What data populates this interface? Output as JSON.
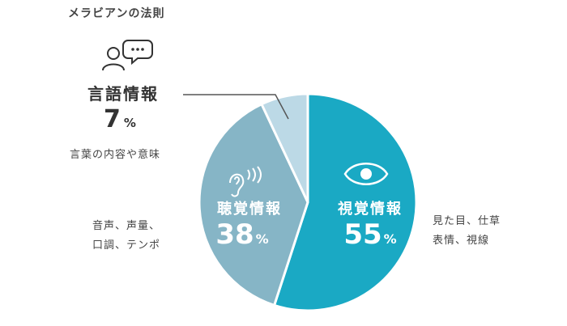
{
  "title": "メラビアンの法則",
  "chart_data": {
    "type": "pie",
    "title": "メラビアンの法則",
    "slices": [
      {
        "key": "visual",
        "label": "視覚情報",
        "value": 55,
        "unit": "%",
        "color": "#1aa9c4",
        "description": [
          "見た目、仕草",
          "表情、視線"
        ]
      },
      {
        "key": "vocal",
        "label": "聴覚情報",
        "value": 38,
        "unit": "%",
        "color": "#86b5c6",
        "description": [
          "音声、声量、",
          "口調、テンポ"
        ]
      },
      {
        "key": "verbal",
        "label": "言語情報",
        "value": 7,
        "unit": "%",
        "color": "#bcd9e6",
        "description": [
          "言葉の内容や意味"
        ]
      }
    ],
    "start": "top",
    "direction": "clockwise"
  },
  "icons": {
    "verbal": [
      "person-icon",
      "speech-bubble-icon"
    ],
    "vocal": "ear-icon",
    "visual": "eye-icon"
  },
  "colors": {
    "text": "#333333",
    "visual": "#1aa9c4",
    "vocal": "#86b5c6",
    "verbal": "#bcd9e6"
  }
}
